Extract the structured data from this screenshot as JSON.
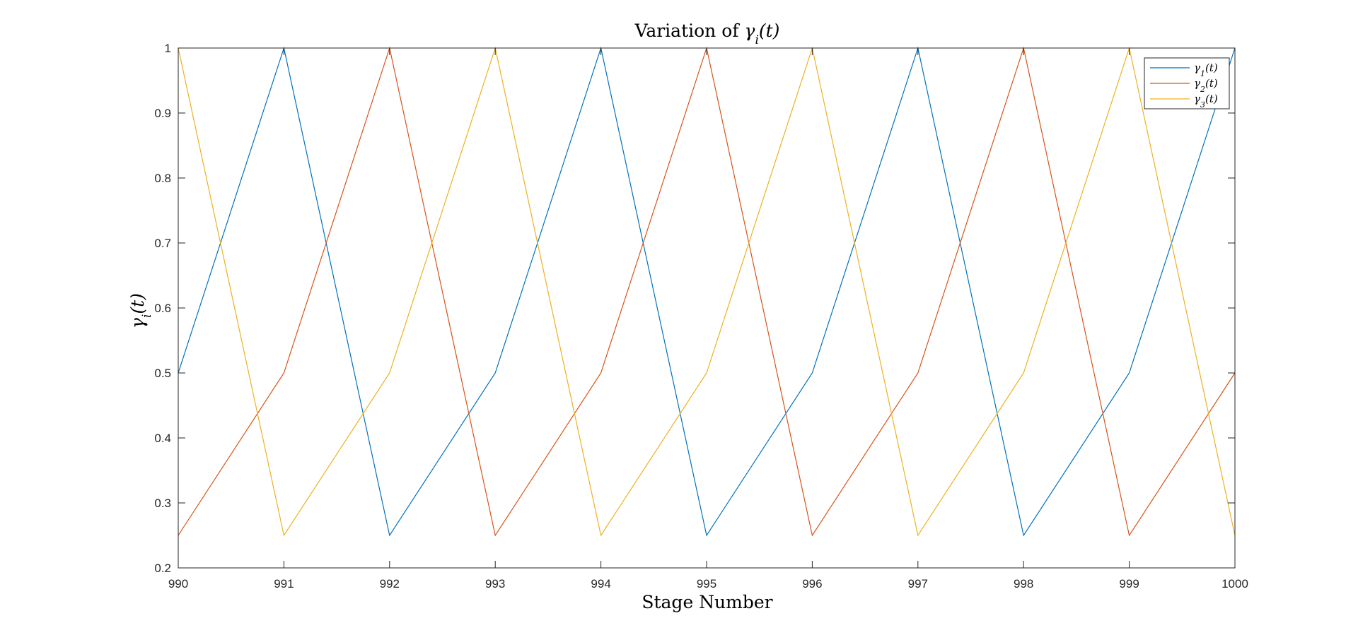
{
  "chart_data": {
    "type": "line",
    "title": {
      "prefix": "Variation of ",
      "symbol": "γ",
      "subscript": "i",
      "suffix": "(t)"
    },
    "xlabel": "Stage Number",
    "ylabel": {
      "symbol": "γ",
      "subscript": "i",
      "suffix": "(t)"
    },
    "xlim": [
      990,
      1000
    ],
    "ylim": [
      0.2,
      1
    ],
    "x_ticks": [
      "990",
      "991",
      "992",
      "993",
      "994",
      "995",
      "996",
      "997",
      "998",
      "999",
      "1000"
    ],
    "y_ticks": [
      "0.2",
      "0.3",
      "0.4",
      "0.5",
      "0.6",
      "0.7",
      "0.8",
      "0.9",
      "1"
    ],
    "grid": false,
    "legend_position": "top-right",
    "x": [
      990,
      991,
      992,
      993,
      994,
      995,
      996,
      997,
      998,
      999,
      1000
    ],
    "series": [
      {
        "name": {
          "symbol": "γ",
          "subscript": "1",
          "suffix": "(t)"
        },
        "color": "#0072BD",
        "values": [
          0.5,
          1,
          0.25,
          0.5,
          1,
          0.25,
          0.5,
          1,
          0.25,
          0.5,
          1
        ]
      },
      {
        "name": {
          "symbol": "γ",
          "subscript": "2",
          "suffix": "(t)"
        },
        "color": "#D95319",
        "values": [
          0.25,
          0.5,
          1,
          0.25,
          0.5,
          1,
          0.25,
          0.5,
          1,
          0.25,
          0.5
        ]
      },
      {
        "name": {
          "symbol": "γ",
          "subscript": "3",
          "suffix": "(t)"
        },
        "color": "#EDB120",
        "values": [
          1,
          0.25,
          0.5,
          1,
          0.25,
          0.5,
          1,
          0.25,
          0.5,
          1,
          0.25
        ]
      }
    ]
  }
}
